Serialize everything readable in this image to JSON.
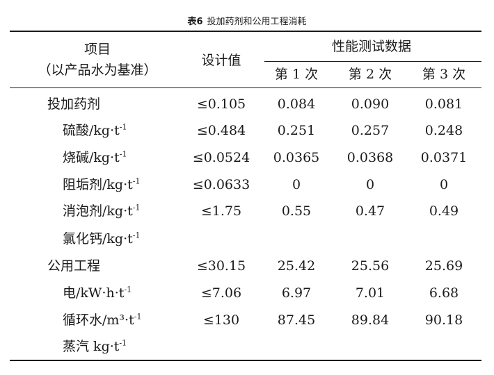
{
  "caption": {
    "number": "表6",
    "title": "投加药剂和公用工程消耗"
  },
  "header": {
    "item": "项目",
    "item_sub": "（以产品水为基准）",
    "design": "设计值",
    "performance": "性能测试数据",
    "runs": [
      "第 1 次",
      "第 2 次",
      "第 3 次"
    ]
  },
  "rows": [
    {
      "label": "投加药剂",
      "unit": "",
      "unit_sup": "",
      "design": "≤0.105",
      "r1": "0.084",
      "r2": "0.090",
      "r3": "0.081",
      "indent": false
    },
    {
      "label": "硫酸",
      "unit": "/kg·t",
      "unit_sup": "-1",
      "design": "≤0.484",
      "r1": "0.251",
      "r2": "0.257",
      "r3": "0.248",
      "indent": true
    },
    {
      "label": "烧碱",
      "unit": "/kg·t",
      "unit_sup": "-1",
      "design": "≤0.0524",
      "r1": "0.0365",
      "r2": "0.0368",
      "r3": "0.0371",
      "indent": true
    },
    {
      "label": "阻垢剂",
      "unit": "/kg·t",
      "unit_sup": "-1",
      "design": "≤0.0633",
      "r1": "0",
      "r2": "0",
      "r3": "0",
      "indent": true
    },
    {
      "label": "消泡剂",
      "unit": "/kg·t",
      "unit_sup": "-1",
      "design": "≤1.75",
      "r1": "0.55",
      "r2": "0.47",
      "r3": "0.49",
      "indent": true
    },
    {
      "label": "氯化钙",
      "unit": "/kg·t",
      "unit_sup": "-1",
      "design": "",
      "r1": "",
      "r2": "",
      "r3": "",
      "indent": true
    },
    {
      "label": "公用工程",
      "unit": "",
      "unit_sup": "",
      "design": "≤30.15",
      "r1": "25.42",
      "r2": "25.56",
      "r3": "25.69",
      "indent": false
    },
    {
      "label": "电",
      "unit": "/kW·h·t",
      "unit_sup": "-1",
      "design": "≤7.06",
      "r1": "6.97",
      "r2": "7.01",
      "r3": "6.68",
      "indent": true
    },
    {
      "label": "循环水",
      "unit": "/m³·t",
      "unit_sup": "-1",
      "design": "≤130",
      "r1": "87.45",
      "r2": "89.84",
      "r3": "90.18",
      "indent": true
    },
    {
      "label": "蒸汽",
      "unit": " kg·t",
      "unit_sup": "-1",
      "design": "",
      "r1": "",
      "r2": "",
      "r3": "",
      "indent": true
    }
  ]
}
